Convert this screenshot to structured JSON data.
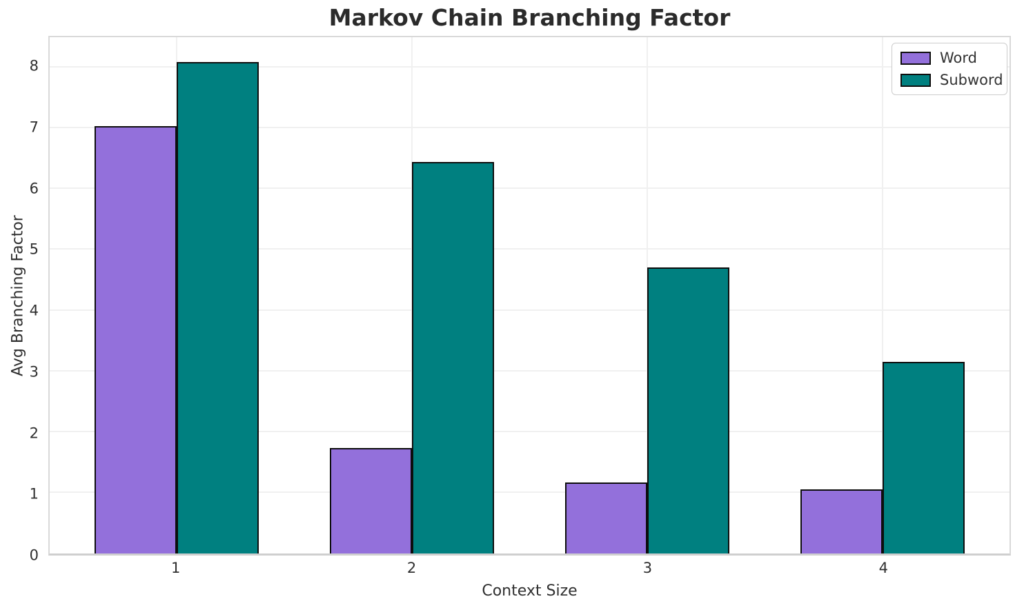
{
  "chart_data": {
    "type": "bar",
    "title": "Markov Chain Branching Factor",
    "xlabel": "Context Size",
    "ylabel": "Avg Branching Factor",
    "categories": [
      "1",
      "2",
      "3",
      "4"
    ],
    "series": [
      {
        "name": "Word",
        "color": "#9370DB",
        "values": [
          7.04,
          1.74,
          1.17,
          1.06
        ]
      },
      {
        "name": "Subword",
        "color": "#008080",
        "values": [
          8.09,
          6.45,
          4.71,
          3.15
        ]
      }
    ],
    "ylim": [
      0,
      8.5
    ],
    "yticks": [
      0,
      1,
      2,
      3,
      4,
      5,
      6,
      7,
      8
    ],
    "grid": "both",
    "legend_position": "upper right",
    "bar_edge_color": "#0d0d0d",
    "grid_color": "#f0f0f0",
    "spine_color": "#d9d9d9",
    "background_color": "#ffffff",
    "title_color": "#2b2b2b",
    "text_color": "#2f2f2f"
  }
}
